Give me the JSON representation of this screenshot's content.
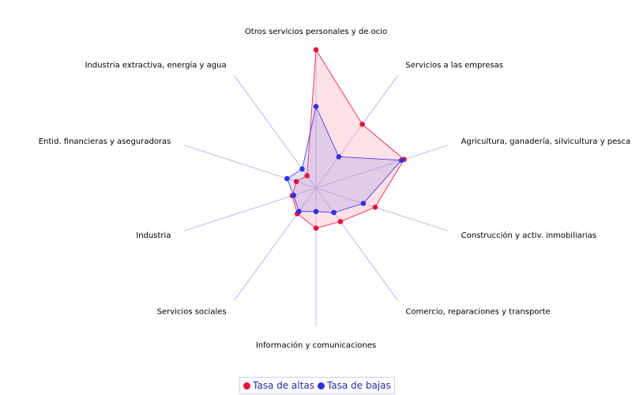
{
  "chart_data": {
    "type": "radar",
    "title": "",
    "categories": [
      "Otros servicios personales y de ocio",
      "Servicios a las empresas",
      "Agricultura, ganadería, silvicultura y pesca",
      "Construcción y activ. inmobiliarias",
      "Comercio, reparaciones y transporte",
      "Información y comunicaciones",
      "Servicios sociales",
      "Industria",
      "Entid. financieras y aseguradoras",
      "Industria extractiva, energía y agua"
    ],
    "rmax": 100,
    "series": [
      {
        "name": "Tasa de altas",
        "color": "#e8103a",
        "fill": "rgba(255,170,185,0.35)",
        "values": [
          100,
          57,
          67,
          45,
          30,
          29,
          23,
          18,
          15,
          11
        ]
      },
      {
        "name": "Tasa de bajas",
        "color": "#3030e0",
        "fill": "rgba(140,140,230,0.25)",
        "values": [
          59,
          28,
          65,
          36,
          22,
          17,
          21,
          17,
          22,
          17
        ]
      }
    ],
    "legend": "bottom"
  }
}
